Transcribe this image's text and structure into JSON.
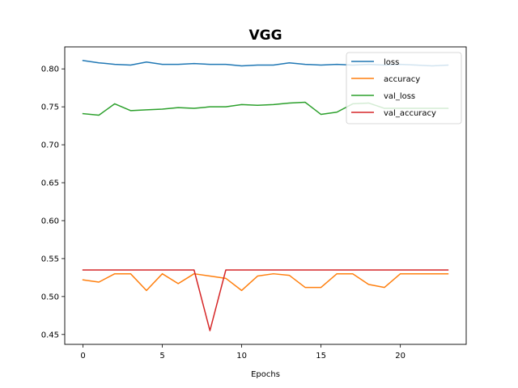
{
  "chart_data": {
    "type": "line",
    "title": "VGG",
    "xlabel": "Epochs",
    "ylabel": "",
    "xlim": [
      -1.15,
      24.15
    ],
    "ylim": [
      0.437,
      0.829
    ],
    "x_ticks": [
      0,
      5,
      10,
      15,
      20
    ],
    "x_tick_labels": [
      "0",
      "5",
      "10",
      "15",
      "20"
    ],
    "y_ticks": [
      0.45,
      0.5,
      0.55,
      0.6,
      0.65,
      0.7,
      0.75,
      0.8
    ],
    "y_tick_labels": [
      "0.45",
      "0.50",
      "0.55",
      "0.60",
      "0.65",
      "0.70",
      "0.75",
      "0.80"
    ],
    "grid": false,
    "legend_position": "top-right",
    "x": [
      0,
      1,
      2,
      3,
      4,
      5,
      6,
      7,
      8,
      9,
      10,
      11,
      12,
      13,
      14,
      15,
      16,
      17,
      18,
      19,
      20,
      21,
      22,
      23
    ],
    "series": [
      {
        "name": "loss",
        "color": "#1f77b4",
        "values": [
          0.811,
          0.808,
          0.806,
          0.805,
          0.809,
          0.806,
          0.806,
          0.807,
          0.806,
          0.806,
          0.804,
          0.805,
          0.805,
          0.808,
          0.806,
          0.805,
          0.806,
          0.805,
          0.806,
          0.805,
          0.806,
          0.805,
          0.804,
          0.805
        ]
      },
      {
        "name": "accuracy",
        "color": "#ff7f0e",
        "values": [
          0.522,
          0.519,
          0.53,
          0.53,
          0.508,
          0.53,
          0.517,
          0.53,
          0.527,
          0.524,
          0.508,
          0.527,
          0.53,
          0.528,
          0.512,
          0.512,
          0.53,
          0.53,
          0.516,
          0.512,
          0.53,
          0.53,
          0.53,
          0.53
        ]
      },
      {
        "name": "val_loss",
        "color": "#2ca02c",
        "values": [
          0.741,
          0.739,
          0.754,
          0.745,
          0.746,
          0.747,
          0.749,
          0.748,
          0.75,
          0.75,
          0.753,
          0.752,
          0.753,
          0.755,
          0.756,
          0.74,
          0.743,
          0.754,
          0.755,
          0.748,
          0.748,
          0.748,
          0.748,
          0.748
        ]
      },
      {
        "name": "val_accuracy",
        "color": "#d62728",
        "values": [
          0.535,
          0.535,
          0.535,
          0.535,
          0.535,
          0.535,
          0.535,
          0.535,
          0.455,
          0.535,
          0.535,
          0.535,
          0.535,
          0.535,
          0.535,
          0.535,
          0.535,
          0.535,
          0.535,
          0.535,
          0.535,
          0.535,
          0.535,
          0.535
        ]
      }
    ]
  }
}
